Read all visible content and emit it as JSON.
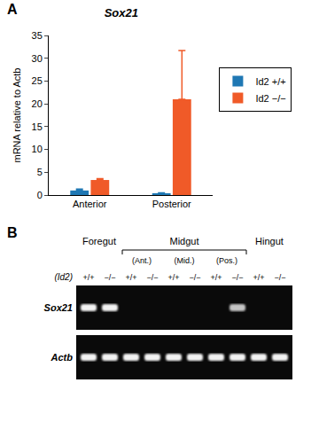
{
  "panel_labels": [
    "A",
    "B"
  ],
  "chart_data": {
    "type": "bar",
    "title": "Sox21",
    "y_label": "mRNA relative to Actb",
    "categories": [
      "Anterior",
      "Posterior"
    ],
    "series": [
      {
        "name": "Id2 +/+",
        "color": "#1f78b4",
        "values": [
          1.0,
          0.4
        ],
        "errors": [
          0.3,
          0.1
        ]
      },
      {
        "name": "Id2 −/−",
        "color": "#f05a28",
        "values": [
          3.3,
          21.0
        ],
        "errors": [
          0.3,
          10.7
        ]
      }
    ],
    "ylim": [
      0,
      35
    ],
    "yticks": [
      0,
      5,
      10,
      15,
      20,
      25,
      30,
      35
    ],
    "legend": "right"
  },
  "gel": {
    "groups": [
      {
        "label": "Foregut",
        "span": 2
      },
      {
        "label": "Midgut",
        "subgroups": [
          {
            "label": "(Ant.)",
            "span": 2
          },
          {
            "label": "(Mid.)",
            "span": 2
          },
          {
            "label": "(Pos.)",
            "span": 2
          }
        ]
      },
      {
        "label": "Hingut",
        "span": 2
      }
    ],
    "genotype_label": "(Id2)",
    "genotypes": [
      "+/+",
      "−/−",
      "+/+",
      "−/−",
      "+/+",
      "−/−",
      "+/+",
      "−/−",
      "+/+",
      "−/−"
    ],
    "rows": [
      {
        "label": "Sox21",
        "bands": [
          1,
          1,
          0,
          0,
          0,
          0,
          0,
          0.8,
          0,
          0
        ]
      },
      {
        "label": "Actb",
        "bands": [
          1,
          1,
          1,
          1,
          1,
          1,
          1,
          1,
          1,
          1
        ]
      }
    ]
  }
}
